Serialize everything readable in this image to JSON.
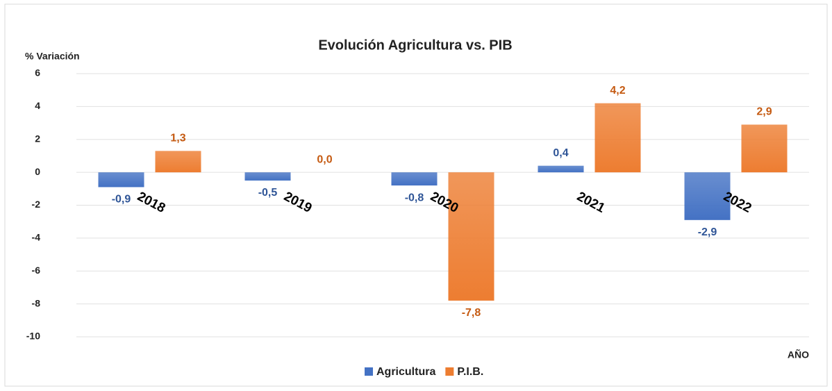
{
  "chart_data": {
    "type": "bar",
    "title": "Evolución Agricultura vs. PIB",
    "y_axis_label": "% Variación",
    "x_axis_label": "AÑO",
    "categories": [
      "2018",
      "2019",
      "2020",
      "2021",
      "2022"
    ],
    "series": [
      {
        "name": "Agricultura",
        "color": "#4472c4",
        "label_color": "#2f5597",
        "values": [
          -0.9,
          -0.5,
          -0.8,
          0.4,
          -2.9
        ],
        "value_labels": [
          "-0,9",
          "-0,5",
          "-0,8",
          "0,4",
          "-2,9"
        ]
      },
      {
        "name": "P.I.B.",
        "color": "#ed7d31",
        "label_color": "#c55a11",
        "values": [
          1.3,
          0.0,
          -7.8,
          4.2,
          2.9
        ],
        "value_labels": [
          "1,3",
          "0,0",
          "-7,8",
          "4,2",
          "2,9"
        ]
      }
    ],
    "ylim": [
      -10,
      6
    ],
    "yticks": [
      6,
      4,
      2,
      0,
      -2,
      -4,
      -6,
      -8,
      -10
    ],
    "grid": true,
    "legend": "bottom"
  }
}
